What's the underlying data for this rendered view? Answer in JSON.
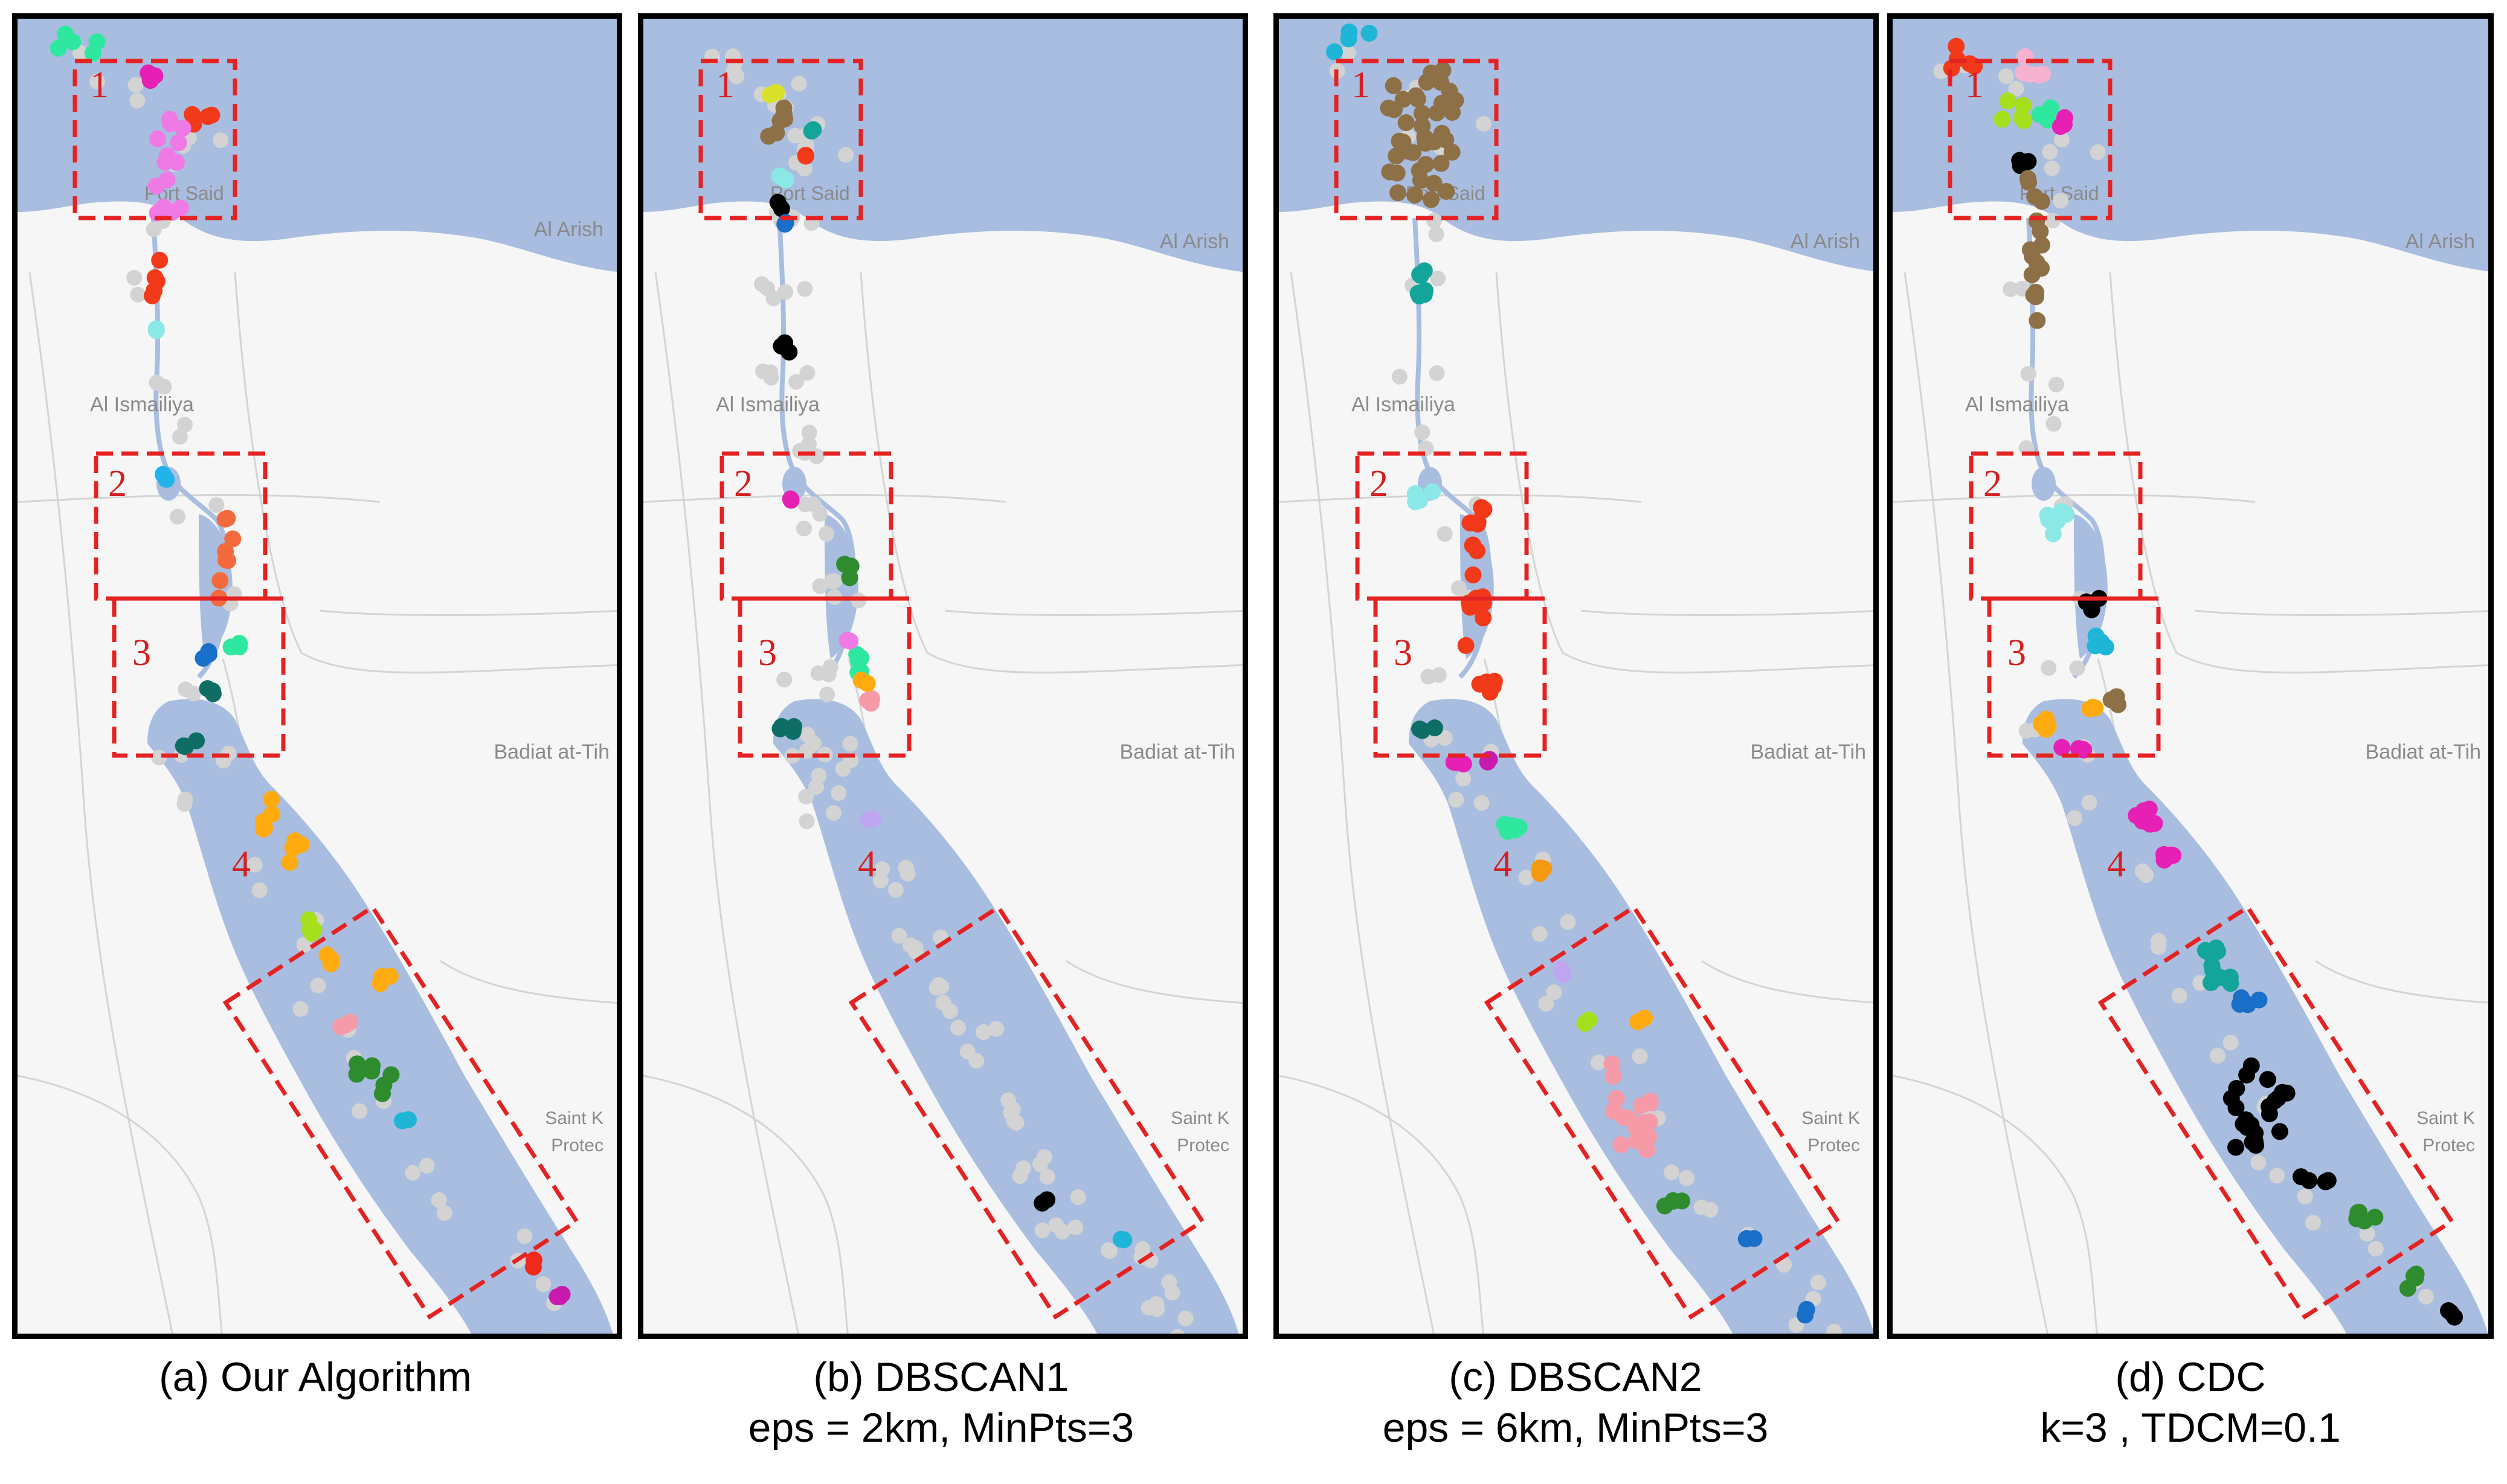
{
  "colors": {
    "sea": "#a8bddf",
    "land": "#f6f6f6",
    "road": "#d4d4d4",
    "box": "#e52222",
    "box_number": "#d42020",
    "noise": "#d3d3d3",
    "map_label": "#8a8a8a"
  },
  "map_labels": {
    "port_said": "Port Said",
    "al_arish": "Al Arish",
    "al_ismailiya": "Al Ismailiya",
    "badiat": "Badiat at-Tih",
    "saint_k": "Saint K",
    "protec": "Protec"
  },
  "box_numbers": [
    "1",
    "2",
    "3",
    "4"
  ],
  "panels": [
    {
      "id": "a",
      "caption": "(a) Our Algorithm",
      "subcaption": "",
      "color_scheme": [
        "#2ee8a0",
        "#e61fb5",
        "#f23a1a",
        "#ef7ae6",
        "#22b3ea",
        "#8ae8e6",
        "#f46a3c",
        "#1a6fc8",
        "#0e6e66",
        "#8e7047",
        "#ffab10",
        "#a6e01c",
        "#ffab10",
        "#f79aa8",
        "#2e8b2e",
        "#1fb5d6",
        "#ef2a1a",
        "#c91ab0"
      ]
    },
    {
      "id": "b",
      "caption": "(b) DBSCAN1",
      "subcaption": "eps = 2km, MinPts=3",
      "color_scheme": [
        "#d8e02a",
        "#8e7047",
        "#14a59a",
        "#f23a1a",
        "#000000",
        "#8ae8e6",
        "#1a6fc8",
        "#e61fb5",
        "#2e8b2e",
        "#2ee8a0",
        "#ef7ae6",
        "#f79aa8",
        "#ffab10",
        "#0e6e66",
        "#bfa6f0",
        "#1fb5d6"
      ]
    },
    {
      "id": "c",
      "caption": "(c) DBSCAN2",
      "subcaption": "eps = 6km, MinPts=3",
      "color_scheme": [
        "#1fb5d6",
        "#8e7047",
        "#14a59a",
        "#8ae8e6",
        "#f23a1a",
        "#0e6e66",
        "#e61fb5",
        "#c91ab0",
        "#2ee8a0",
        "#f59a10",
        "#bfa6f0",
        "#a6e01c",
        "#ffab10",
        "#f79aa8",
        "#2e8b2e",
        "#1a6fc8"
      ]
    },
    {
      "id": "d",
      "caption": "(d) CDC",
      "subcaption": "k=3 , TDCM=0.1",
      "color_scheme": [
        "#f23a1a",
        "#f7b2cf",
        "#a6e01c",
        "#2ee8a0",
        "#e61fb5",
        "#000000",
        "#8e7047",
        "#8ae8e6",
        "#1fb5d6",
        "#ffab10",
        "#e61fb5",
        "#14a59a",
        "#1a6fc8",
        "#000000",
        "#2e8b2e"
      ]
    }
  ]
}
